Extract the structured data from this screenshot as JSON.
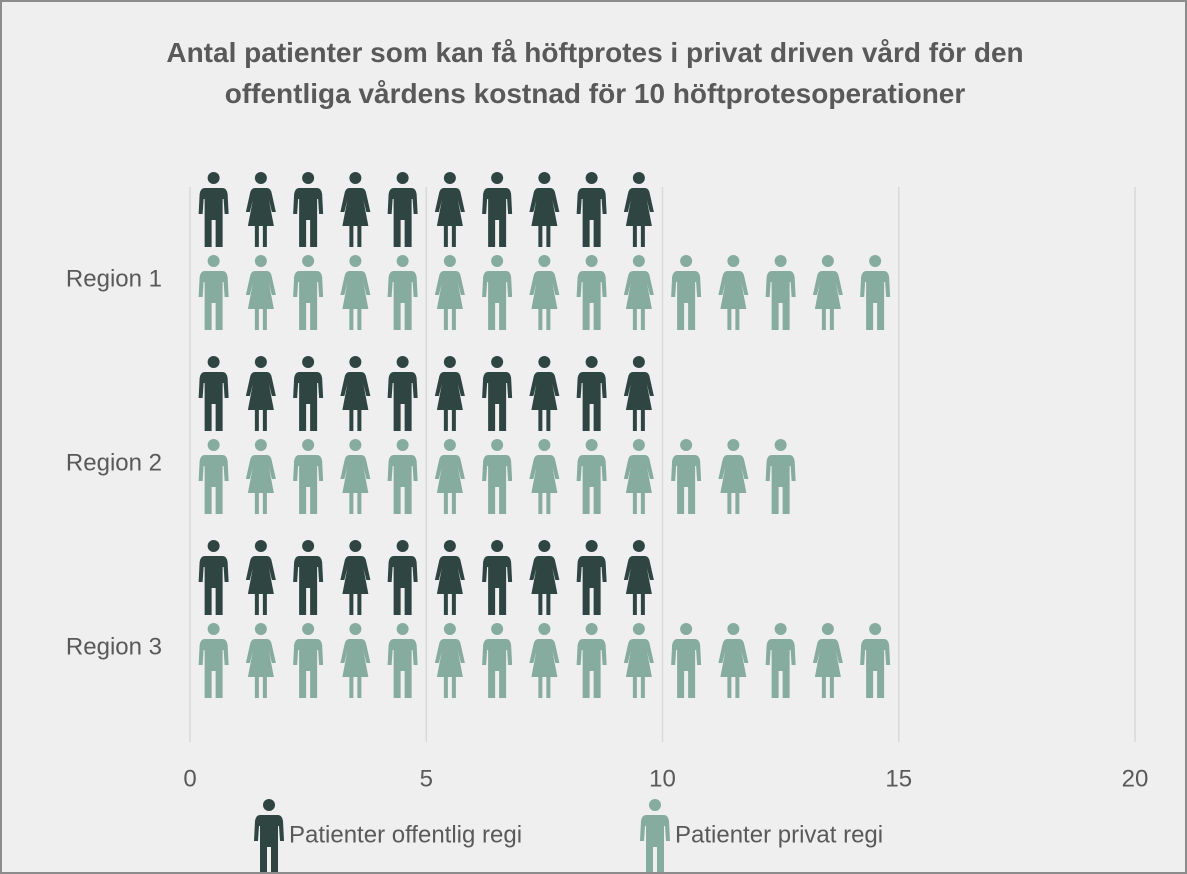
{
  "chart_data": {
    "type": "pictograph-bar",
    "title": "Antal patienter som kan få höftprotes i privat driven vård för den offentliga vårdens kostnad för 10 höftprotesoperationer",
    "categories": [
      "Region 1",
      "Region 2",
      "Region 3"
    ],
    "series": [
      {
        "name": "Patienter offentlig regi",
        "color": "#2f4541",
        "values": [
          10,
          10,
          10
        ]
      },
      {
        "name": "Patienter privat regi",
        "color": "#86ab9f",
        "values": [
          15,
          12.9,
          14.9
        ]
      }
    ],
    "xlim": [
      0,
      20
    ],
    "xticks": [
      0,
      5,
      10,
      15,
      20
    ],
    "grid": true,
    "legend": "bottom"
  }
}
